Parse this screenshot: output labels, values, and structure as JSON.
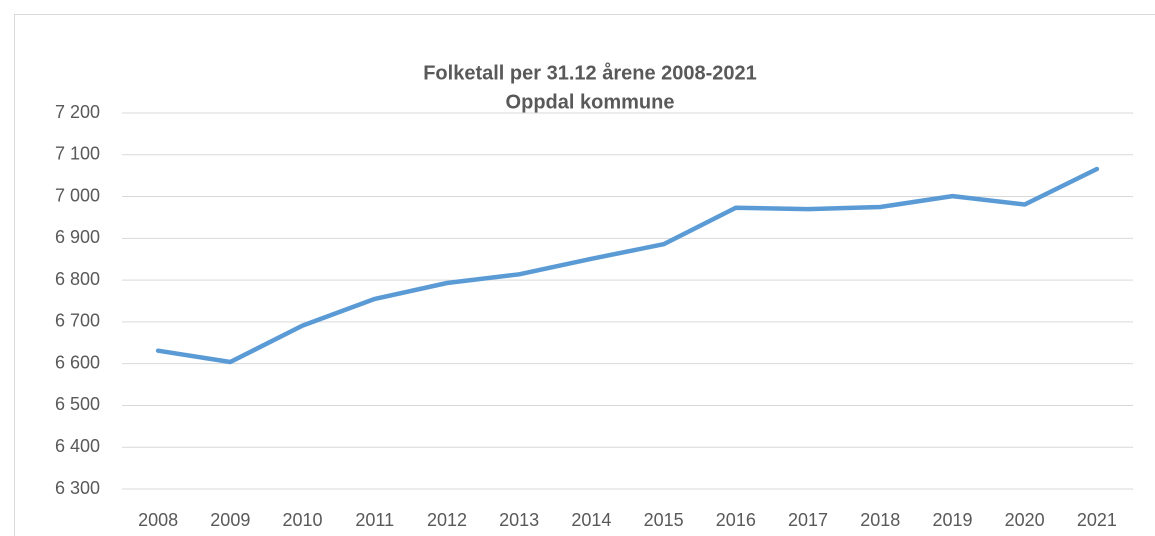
{
  "chart_data": {
    "type": "line",
    "title": "Folketall per 31.12 årene 2008-2021",
    "subtitle": "Oppdal kommune",
    "categories": [
      "2008",
      "2009",
      "2010",
      "2011",
      "2012",
      "2013",
      "2014",
      "2015",
      "2016",
      "2017",
      "2018",
      "2019",
      "2020",
      "2021"
    ],
    "series": [
      {
        "color": "#5b9bd5",
        "values": [
          6631,
          6604,
          6691,
          6755,
          6793,
          6814,
          6851,
          6886,
          6973,
          6970,
          6975,
          7001,
          6981,
          7066
        ]
      }
    ],
    "ylim": [
      6300,
      7200
    ],
    "yticks": [
      {
        "value": 6300,
        "label": "6 300"
      },
      {
        "value": 6400,
        "label": "6 400"
      },
      {
        "value": 6500,
        "label": "6 500"
      },
      {
        "value": 6600,
        "label": "6 600"
      },
      {
        "value": 6700,
        "label": "6 700"
      },
      {
        "value": 6800,
        "label": "6 800"
      },
      {
        "value": 6900,
        "label": "6 900"
      },
      {
        "value": 7000,
        "label": "7 000"
      },
      {
        "value": 7100,
        "label": "7 100"
      },
      {
        "value": 7200,
        "label": "7 200"
      }
    ],
    "grid": true
  }
}
